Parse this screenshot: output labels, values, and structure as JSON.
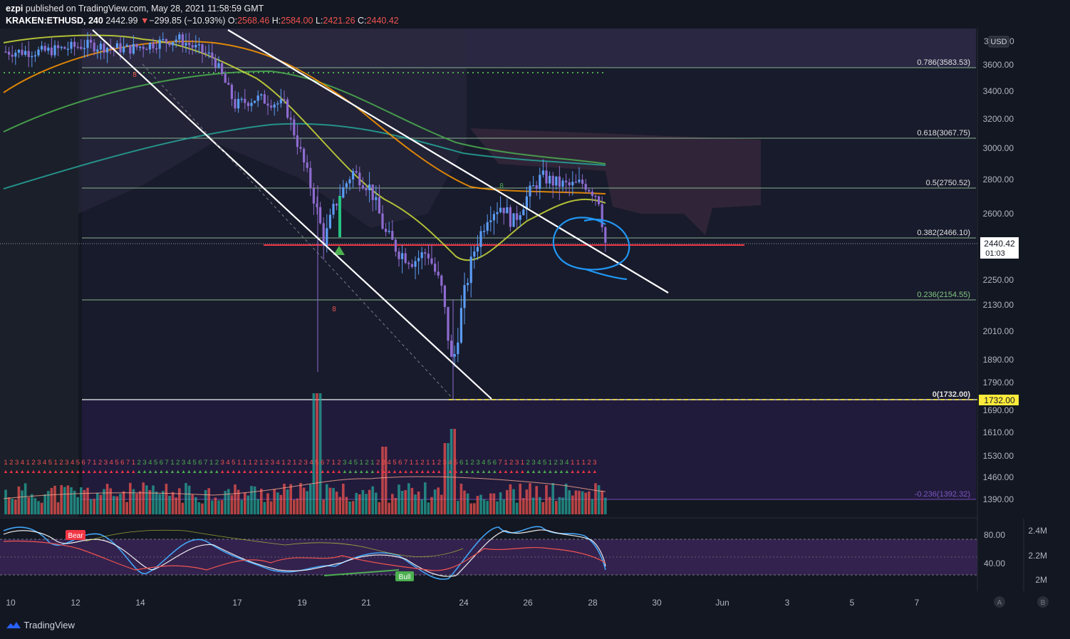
{
  "header": {
    "user": "ezpi",
    "published_text": "published on TradingView.com, May 28, 2021 11:58:59 GMT",
    "symbol_interval": "KRAKEN:ETHUSD, 240",
    "last": "2442.99",
    "arrow": "▼",
    "change": "−299.85 (−10.93%)",
    "o_label": "O:",
    "o_value": "2568.46",
    "h_label": "H:",
    "h_value": "2584.00",
    "l_label": "L:",
    "l_value": "2421.26",
    "c_label": "C:",
    "c_value": "2440.42"
  },
  "axis": {
    "currency": "USD",
    "price_ticks": [
      "3600.00",
      "3400.00",
      "3200.00",
      "3000.00",
      "2800.00",
      "2600.00",
      "2250.00",
      "2130.00",
      "2010.00",
      "1890.00",
      "1790.00",
      "1690.00",
      "1610.00",
      "1530.00",
      "1460.00",
      "1390.00"
    ],
    "current_price": "2440.42",
    "countdown": "01:03",
    "level_badge": "1732.00",
    "date_ticks": [
      "10",
      "12",
      "14",
      "17",
      "19",
      "21",
      "24",
      "26",
      "28",
      "30",
      "Jun",
      "3",
      "5",
      "7"
    ],
    "osc_ticks": [
      "80.00",
      "40.00"
    ],
    "volume_ticks": [
      "2.4M",
      "2.2M",
      "2M"
    ],
    "scale_buttons": [
      "A",
      "B"
    ]
  },
  "chart_data": {
    "type": "candlestick",
    "symbol": "KRAKEN:ETHUSD",
    "interval": "240",
    "x_range": [
      "May 10, 2021",
      "Jun 8, 2021"
    ],
    "y_range": [
      1390,
      3700
    ],
    "ohlc_last": {
      "open": 2568.46,
      "high": 2584.0,
      "low": 2421.26,
      "close": 2440.42
    },
    "fibonacci_levels": [
      {
        "ratio": "0.786",
        "price": 3583.53,
        "label": "0.786(3583.53)"
      },
      {
        "ratio": "0.618",
        "price": 3067.75,
        "label": "0.618(3067.75)"
      },
      {
        "ratio": "0.5",
        "price": 2750.52,
        "label": "0.5(2750.52)"
      },
      {
        "ratio": "0.382",
        "price": 2466.1,
        "label": "0.382(2466.10)"
      },
      {
        "ratio": "0.236",
        "price": 2154.55,
        "label": "0.236(2154.55)"
      },
      {
        "ratio": "0",
        "price": 1732.0,
        "label": "0(1732.00)"
      },
      {
        "ratio": "-0.236",
        "price": 1392.32,
        "label": "-0.236(1392.32)"
      }
    ],
    "horizontal_lines": [
      {
        "price": 2440,
        "color": "#f23645"
      }
    ],
    "sequential_counts": "12341234512345671234567123456712345671234511121234121234567123451212345671121123456123456712312345123411123",
    "sequential_labels": [
      "8",
      "8",
      "8"
    ],
    "oscillator_labels": [
      "Bear",
      "Bull"
    ]
  },
  "colors": {
    "background": "#131722",
    "up_candle": "#5b9cf6",
    "down_candle": "#8e6bd0",
    "fib_line": "#b2d8b2",
    "support_line": "#f23645",
    "trendline": "#ffffff",
    "annotation": "#2196f3"
  },
  "footer": {
    "brand": "TradingView"
  }
}
